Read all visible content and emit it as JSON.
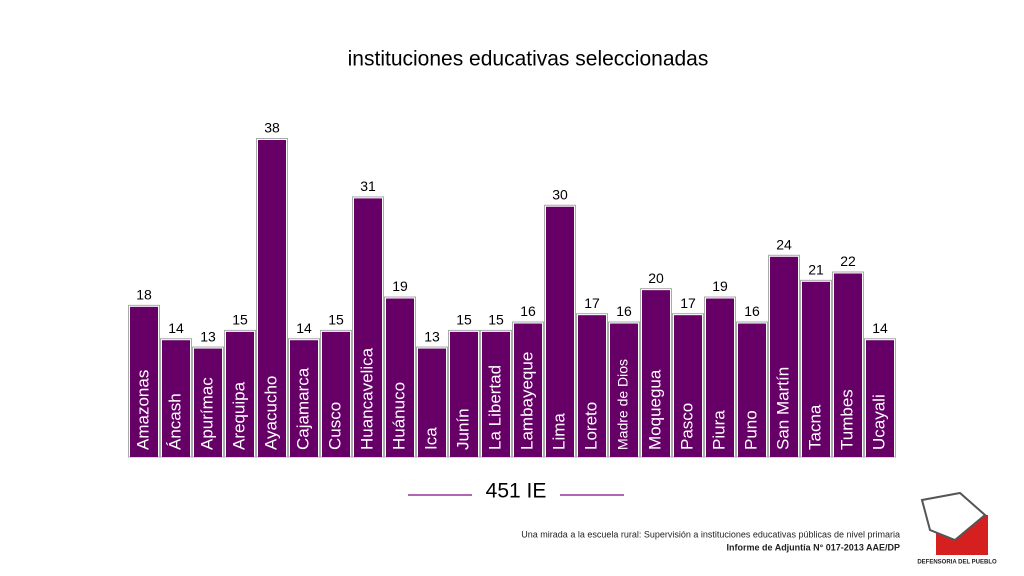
{
  "chart_data": {
    "type": "bar",
    "title": "instituciones educativas seleccionadas",
    "categories": [
      "Amazonas",
      "Áncash",
      "Apurímac",
      "Arequipa",
      "Ayacucho",
      "Cajamarca",
      "Cusco",
      "Huancavelica",
      "Huánuco",
      "Ica",
      "Junín",
      "La Libertad",
      "Lambayeque",
      "Lima",
      "Loreto",
      "Madre de Dios",
      "Moquegua",
      "Pasco",
      "Piura",
      "Puno",
      "San Martín",
      "Tacna",
      "Tumbes",
      "Ucayali"
    ],
    "values": [
      18,
      14,
      13,
      15,
      38,
      14,
      15,
      31,
      19,
      13,
      15,
      15,
      16,
      30,
      17,
      16,
      20,
      17,
      19,
      16,
      24,
      21,
      22,
      14
    ],
    "color": "#660066",
    "annotation": "451 IE"
  },
  "footer": {
    "line1": "Una mirada a la escuela rural: Supervisión a instituciones educativas públicas de nivel primaria",
    "line2": "Informe de Adjuntía N° 017-2013 AAE/DP"
  },
  "logo": {
    "text": "DEFENSORIA DEL PUEBLO"
  }
}
